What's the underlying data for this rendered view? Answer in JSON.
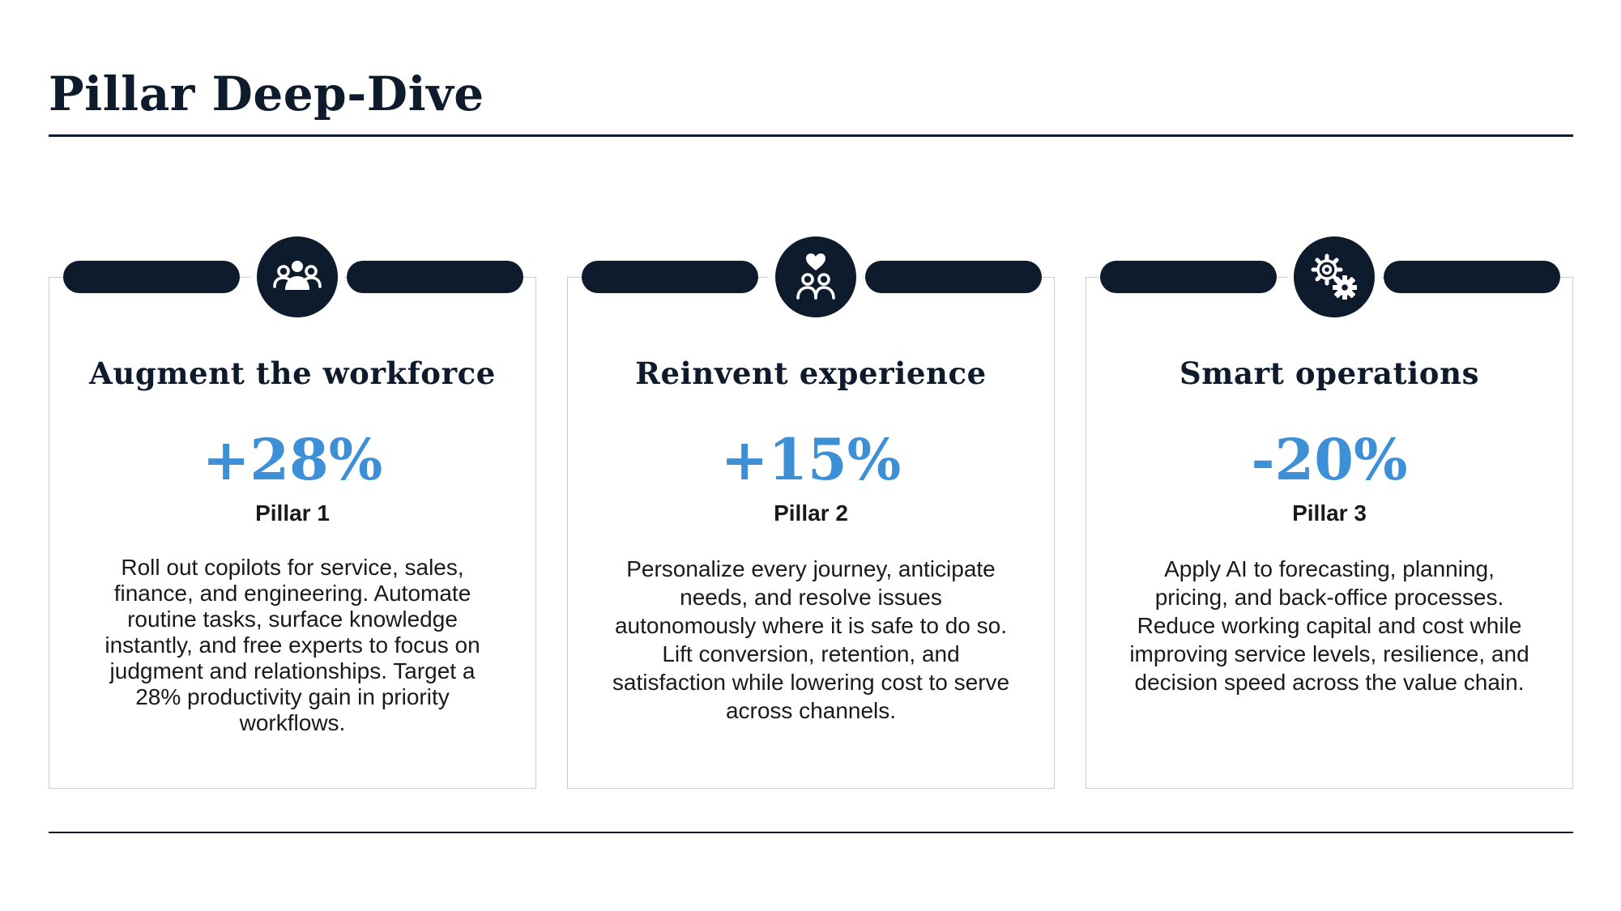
{
  "page": {
    "title": "Pillar Deep-Dive"
  },
  "colors": {
    "navy": "#0e1b2c",
    "accent_blue": "#3d8fd6",
    "card_border": "#c9cdd2"
  },
  "pillars": [
    {
      "icon": "people-group-icon",
      "title": "Augment the workforce",
      "metric": "+28%",
      "label": "Pillar 1",
      "description": "Roll out copilots for service, sales, finance, and engineering. Automate routine tasks, surface knowledge instantly, and free experts to focus on judgment and relationships. Target a 28% productivity gain in priority workflows."
    },
    {
      "icon": "heart-people-icon",
      "title": "Reinvent experience",
      "metric": "+15%",
      "label": "Pillar 2",
      "description": "Personalize every journey, anticipate needs, and resolve issues autonomously where it is safe to do so. Lift conversion, retention, and satisfaction while lowering cost to serve across channels."
    },
    {
      "icon": "gears-icon",
      "title": "Smart operations",
      "metric": "-20%",
      "label": "Pillar 3",
      "description": "Apply AI to forecasting, planning, pricing, and back-office processes. Reduce working capital and cost while improving service levels, resilience, and decision speed across the value chain."
    }
  ]
}
